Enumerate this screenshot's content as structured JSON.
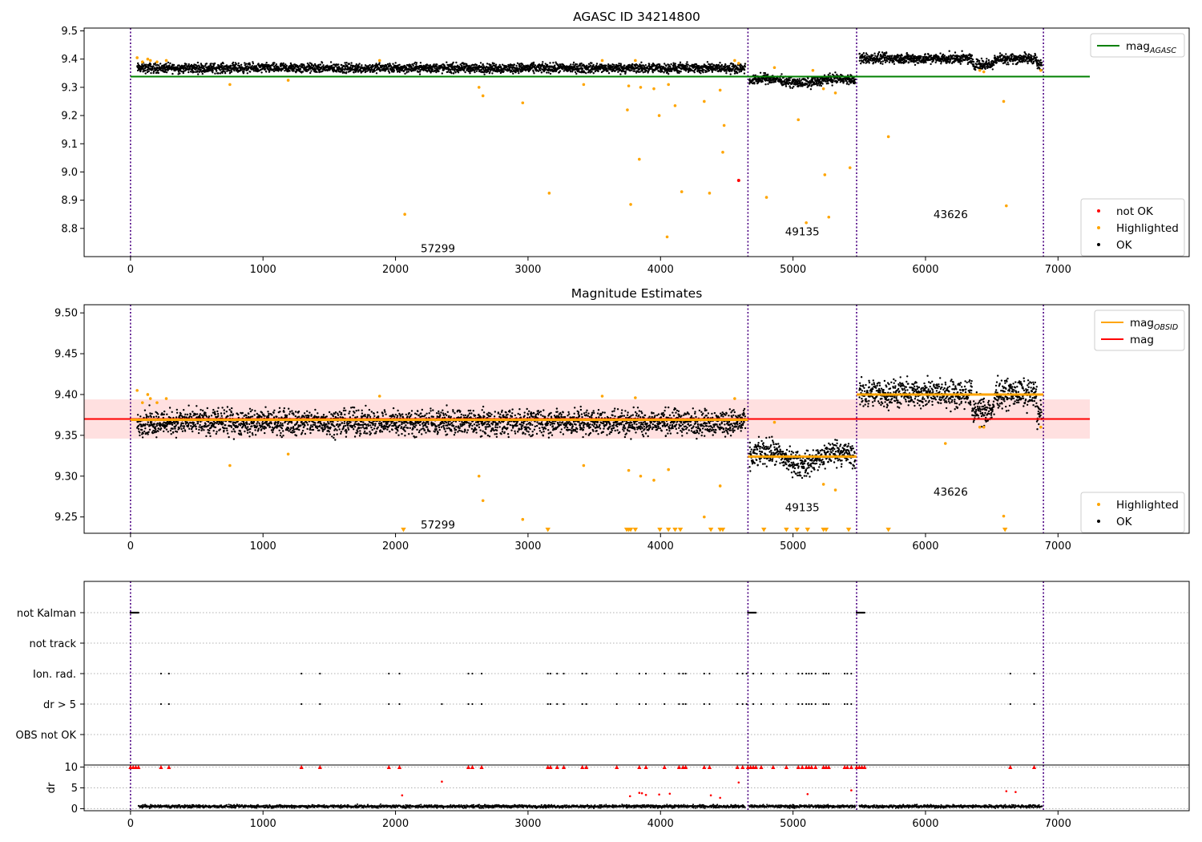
{
  "chart_data": [
    {
      "type": "scatter",
      "title": "AGASC ID 34214800",
      "xlim": [
        -350,
        7990
      ],
      "ylim": [
        8.7,
        9.51
      ],
      "xticks": [
        0,
        1000,
        2000,
        3000,
        4000,
        5000,
        6000,
        7000
      ],
      "yticks": [
        "9.5",
        "9.4",
        "9.3",
        "9.2",
        "9.1",
        "9.0",
        "8.9",
        "8.8"
      ],
      "ytick_values": [
        9.5,
        9.4,
        9.3,
        9.2,
        9.1,
        9.0,
        8.9,
        8.8
      ],
      "obsid_boundaries": [
        0,
        4660,
        5480,
        6890
      ],
      "obsid_labels": [
        {
          "text": "57299",
          "x": 2320,
          "y": 8.73
        },
        {
          "text": "49135",
          "x": 5070,
          "y": 8.79
        },
        {
          "text": "43626",
          "x": 6190,
          "y": 8.85
        }
      ],
      "mag_agasc": 9.338,
      "mag_agasc_x": [
        0,
        7240
      ],
      "segments": [
        {
          "x0": 50,
          "x1": 4640,
          "mean": 9.368,
          "spread": 0.012
        },
        {
          "x0": 4670,
          "x1": 5470,
          "mean": 9.323,
          "spread": 0.012
        },
        {
          "x0": 5500,
          "x1": 6880,
          "mean": 9.402,
          "spread": 0.013
        }
      ],
      "highlighted": [
        [
          50,
          9.405
        ],
        [
          90,
          9.39
        ],
        [
          130,
          9.4
        ],
        [
          150,
          9.395
        ],
        [
          200,
          9.39
        ],
        [
          270,
          9.395
        ],
        [
          750,
          9.31
        ],
        [
          1190,
          9.325
        ],
        [
          1880,
          9.395
        ],
        [
          2070,
          8.85
        ],
        [
          2630,
          9.3
        ],
        [
          2660,
          9.27
        ],
        [
          2960,
          9.245
        ],
        [
          3160,
          8.925
        ],
        [
          3420,
          9.31
        ],
        [
          3560,
          9.395
        ],
        [
          3750,
          9.22
        ],
        [
          3760,
          9.305
        ],
        [
          3775,
          8.885
        ],
        [
          3810,
          9.395
        ],
        [
          3840,
          9.045
        ],
        [
          3850,
          9.3
        ],
        [
          3950,
          9.295
        ],
        [
          3990,
          9.2
        ],
        [
          4060,
          9.31
        ],
        [
          4110,
          9.235
        ],
        [
          4160,
          8.93
        ],
        [
          4330,
          9.25
        ],
        [
          4370,
          8.925
        ],
        [
          4450,
          9.29
        ],
        [
          4480,
          9.165
        ],
        [
          4470,
          9.07
        ],
        [
          4560,
          9.395
        ],
        [
          4590,
          9.385
        ],
        [
          4800,
          8.91
        ],
        [
          4860,
          9.37
        ],
        [
          5040,
          9.185
        ],
        [
          5100,
          8.82
        ],
        [
          5150,
          9.36
        ],
        [
          5230,
          9.295
        ],
        [
          5240,
          8.99
        ],
        [
          5270,
          8.84
        ],
        [
          5320,
          9.28
        ],
        [
          5430,
          9.015
        ],
        [
          4050,
          8.77
        ],
        [
          5720,
          9.125
        ],
        [
          6410,
          9.36
        ],
        [
          6440,
          9.355
        ],
        [
          6590,
          9.25
        ],
        [
          6610,
          8.88
        ],
        [
          6870,
          9.36
        ]
      ],
      "not_ok": [
        [
          4590,
          8.97
        ]
      ],
      "legends": [
        {
          "label_main": "mag",
          "label_sub": "AGASC",
          "color": "#008000",
          "marker": "line"
        },
        {
          "label_main": "not OK",
          "label_sub": "",
          "color": "#ff0000",
          "marker": "dot"
        },
        {
          "label_main": "Highlighted",
          "label_sub": "",
          "color": "#ffa500",
          "marker": "dot"
        },
        {
          "label_main": "OK",
          "label_sub": "",
          "color": "#000000",
          "marker": "dot"
        }
      ]
    },
    {
      "type": "scatter",
      "title": "Magnitude Estimates",
      "xlim": [
        -350,
        7990
      ],
      "ylim": [
        9.23,
        9.51
      ],
      "xticks": [
        0,
        1000,
        2000,
        3000,
        4000,
        5000,
        6000,
        7000
      ],
      "yticks": [
        "9.50",
        "9.45",
        "9.40",
        "9.35",
        "9.30",
        "9.25"
      ],
      "ytick_values": [
        9.5,
        9.45,
        9.4,
        9.35,
        9.3,
        9.25
      ],
      "obsid_boundaries": [
        0,
        4660,
        5480,
        6890
      ],
      "obsid_labels": [
        {
          "text": "57299",
          "x": 2320,
          "y": 9.241
        },
        {
          "text": "49135",
          "x": 5070,
          "y": 9.262
        },
        {
          "text": "43626",
          "x": 6190,
          "y": 9.281
        }
      ],
      "mag": 9.37,
      "mag_band": [
        9.346,
        9.394
      ],
      "mag_x": [
        -350,
        7240
      ],
      "mag_obsid": [
        {
          "x0": 0,
          "x1": 4660,
          "value": 9.369
        },
        {
          "x0": 4660,
          "x1": 5480,
          "value": 9.324
        },
        {
          "x0": 5480,
          "x1": 6890,
          "value": 9.4
        }
      ],
      "segments": [
        {
          "x0": 50,
          "x1": 4640,
          "mean": 9.366,
          "spread": 0.011
        },
        {
          "x0": 4670,
          "x1": 5470,
          "mean": 9.322,
          "spread": 0.011
        },
        {
          "x0": 5500,
          "x1": 6880,
          "mean": 9.401,
          "spread": 0.012
        }
      ],
      "highlighted": [
        [
          50,
          9.405
        ],
        [
          90,
          9.39
        ],
        [
          130,
          9.4
        ],
        [
          150,
          9.395
        ],
        [
          200,
          9.39
        ],
        [
          270,
          9.395
        ],
        [
          750,
          9.313
        ],
        [
          1190,
          9.327
        ],
        [
          1880,
          9.398
        ],
        [
          2630,
          9.3
        ],
        [
          2660,
          9.27
        ],
        [
          2960,
          9.247
        ],
        [
          3420,
          9.313
        ],
        [
          3560,
          9.398
        ],
        [
          3760,
          9.307
        ],
        [
          3810,
          9.396
        ],
        [
          3850,
          9.3
        ],
        [
          3950,
          9.295
        ],
        [
          4060,
          9.308
        ],
        [
          4330,
          9.25
        ],
        [
          4450,
          9.288
        ],
        [
          4560,
          9.395
        ],
        [
          4860,
          9.366
        ],
        [
          5230,
          9.29
        ],
        [
          5320,
          9.283
        ],
        [
          6150,
          9.34
        ],
        [
          6410,
          9.36
        ],
        [
          6440,
          9.36
        ],
        [
          6590,
          9.251
        ],
        [
          6870,
          9.36
        ]
      ],
      "below_range": [
        2060,
        3150,
        3745,
        3760,
        3775,
        3810,
        3995,
        4060,
        4110,
        4150,
        4380,
        4450,
        4470,
        4780,
        4950,
        5030,
        5110,
        5230,
        5250,
        5420,
        5720,
        6600
      ],
      "legends": [
        {
          "label_main": "mag",
          "label_sub": "OBSID",
          "color": "#ffa500",
          "marker": "line"
        },
        {
          "label_main": "mag",
          "label_sub": "",
          "color": "#ff0000",
          "marker": "line"
        },
        {
          "label_main": "Highlighted",
          "label_sub": "",
          "color": "#ffa500",
          "marker": "dot"
        },
        {
          "label_main": "OK",
          "label_sub": "",
          "color": "#000000",
          "marker": "dot"
        }
      ]
    },
    {
      "type": "scatter",
      "title": "",
      "xlim": [
        -350,
        7990
      ],
      "xticks": [
        0,
        1000,
        2000,
        3000,
        4000,
        5000,
        6000,
        7000
      ],
      "flag_rows": [
        "not Kalman",
        "not track",
        "Ion. rad.",
        "dr > 5",
        "OBS not OK"
      ],
      "flags": {
        "not Kalman": [
          [
            0,
            60
          ],
          [
            4660,
            4720
          ],
          [
            5480,
            5540
          ]
        ],
        "not track": [],
        "Ion. rad.": [
          230,
          290,
          1290,
          1430,
          1950,
          2030,
          2550,
          2580,
          2650,
          3150,
          3170,
          3220,
          3270,
          3410,
          3440,
          3670,
          3840,
          3890,
          4030,
          4140,
          4170,
          4190,
          4330,
          4370,
          4580,
          4620,
          4650,
          4700,
          4760,
          4850,
          4950,
          5040,
          5070,
          5100,
          5120,
          5140,
          5170,
          5230,
          5250,
          5270,
          5390,
          5410,
          5440,
          6640,
          6820
        ],
        "dr > 5": [
          230,
          290,
          1290,
          1430,
          1950,
          2030,
          2350,
          2550,
          2580,
          2650,
          3150,
          3170,
          3220,
          3270,
          3410,
          3440,
          3670,
          3840,
          3890,
          4030,
          4140,
          4170,
          4190,
          4330,
          4370,
          4580,
          4620,
          4650,
          4700,
          4760,
          4850,
          4950,
          5040,
          5070,
          5100,
          5120,
          5140,
          5170,
          5230,
          5250,
          5270,
          5390,
          5410,
          5440,
          6640,
          6820
        ],
        "OBS not OK": []
      },
      "ylabel": "dr",
      "dr_ylim": [
        -0.5,
        10.5
      ],
      "dr_yticks": [
        10,
        5,
        0
      ],
      "dr_capped_x": [
        0,
        20,
        40,
        60,
        230,
        290,
        1290,
        1430,
        1950,
        2030,
        2550,
        2580,
        2650,
        3150,
        3170,
        3220,
        3270,
        3410,
        3440,
        3670,
        3840,
        3890,
        4030,
        4140,
        4170,
        4190,
        4330,
        4370,
        4580,
        4620,
        4660,
        4680,
        4700,
        4720,
        4760,
        4850,
        4950,
        5040,
        5070,
        5100,
        5120,
        5140,
        5170,
        5230,
        5250,
        5270,
        5390,
        5410,
        5440,
        5480,
        5500,
        5520,
        5540,
        6640,
        6820
      ],
      "dr_mid": [
        [
          2050,
          3.2
        ],
        [
          2350,
          6.5
        ],
        [
          3770,
          3.0
        ],
        [
          3840,
          3.8
        ],
        [
          3860,
          3.7
        ],
        [
          3890,
          3.3
        ],
        [
          3990,
          3.4
        ],
        [
          4070,
          3.6
        ],
        [
          4380,
          3.2
        ],
        [
          4450,
          2.6
        ],
        [
          4590,
          6.3
        ],
        [
          5110,
          3.5
        ],
        [
          5440,
          4.4
        ],
        [
          6610,
          4.2
        ],
        [
          6680,
          4.0
        ]
      ]
    }
  ]
}
